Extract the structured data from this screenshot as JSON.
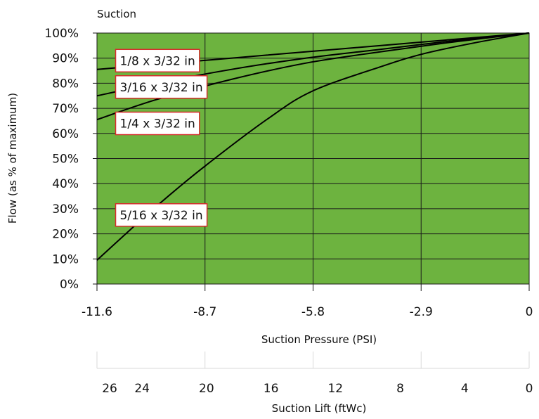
{
  "chart_data": {
    "type": "line",
    "title": "Suction",
    "xlabel": "Suction Pressure (PSI)",
    "ylabel": "Flow (as % of maximum)",
    "secondary_xlabel": "Suction Lift (ftWc)",
    "xlim": [
      -11.6,
      0
    ],
    "ylim": [
      0,
      100
    ],
    "x_ticks": [
      -11.6,
      -8.7,
      -5.8,
      -2.9,
      0
    ],
    "x_tick_labels": [
      "-11.6",
      "-8.7",
      "-5.8",
      "-2.9",
      "0"
    ],
    "y_ticks": [
      0,
      10,
      20,
      30,
      40,
      50,
      60,
      70,
      80,
      90,
      100
    ],
    "y_tick_labels": [
      "0%",
      "10%",
      "20%",
      "30%",
      "40%",
      "50%",
      "60%",
      "70%",
      "80%",
      "90%",
      "100%"
    ],
    "secondary_x_ticks": [
      {
        "label": "26",
        "psi": -11.26
      },
      {
        "label": "24",
        "psi": -10.39
      },
      {
        "label": "20",
        "psi": -8.66
      },
      {
        "label": "16",
        "psi": -6.93
      },
      {
        "label": "12",
        "psi": -5.2
      },
      {
        "label": "8",
        "psi": -3.46
      },
      {
        "label": "4",
        "psi": -1.73
      },
      {
        "label": "0",
        "psi": 0
      }
    ],
    "secondary_gridlines_psi": [
      -11.6,
      -8.7,
      -5.8,
      -2.9,
      0
    ],
    "grid": true,
    "plot_background": "#6db33f",
    "line_color": "#000000",
    "label_border_color": "#d62d2d",
    "series": [
      {
        "name": "1/8 x 3/32 in",
        "x": [
          -11.6,
          -10.0,
          -8.0,
          -6.0,
          -4.0,
          -2.0,
          0
        ],
        "y": [
          85.5,
          87.5,
          90.0,
          92.5,
          95.0,
          97.5,
          100
        ]
      },
      {
        "name": "3/16 x 3/32 in",
        "x": [
          -11.6,
          -10.0,
          -8.0,
          -6.0,
          -4.0,
          -2.0,
          0
        ],
        "y": [
          75.0,
          80.0,
          85.5,
          90.0,
          93.5,
          97.0,
          100
        ]
      },
      {
        "name": "1/4 x 3/32 in",
        "x": [
          -11.6,
          -10.0,
          -8.0,
          -6.0,
          -4.0,
          -2.0,
          0
        ],
        "y": [
          65.5,
          73.5,
          81.5,
          88.0,
          92.5,
          96.5,
          100
        ]
      },
      {
        "name": "5/16 x 3/32 in",
        "x": [
          -11.6,
          -10.0,
          -8.7,
          -7.0,
          -5.8,
          -4.0,
          -2.9,
          -1.5,
          0
        ],
        "y": [
          9.5,
          31.0,
          47.0,
          66.0,
          77.0,
          86.5,
          91.5,
          96.0,
          100
        ]
      }
    ]
  }
}
